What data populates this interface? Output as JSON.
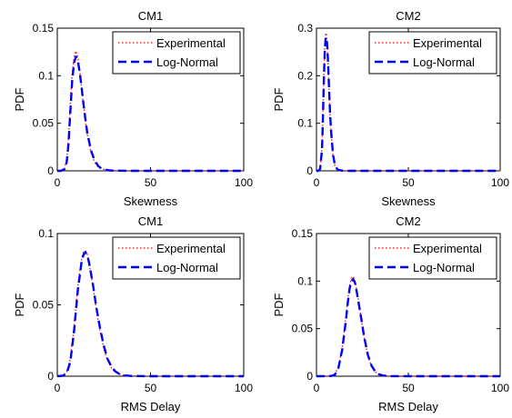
{
  "chart_data": [
    {
      "type": "line",
      "title": "CM1",
      "xlabel": "Skewness",
      "ylabel": "PDF",
      "xlim": [
        0,
        100
      ],
      "ylim": [
        0,
        0.15
      ],
      "xticks": [
        "0",
        "50",
        "100"
      ],
      "yticks": [
        "0",
        "0.05",
        "0.1",
        "0.15"
      ],
      "legend_position": "top-right",
      "grid": false,
      "series": [
        {
          "name": "Experimental",
          "color": "#ff0000",
          "style": "dotted",
          "x": [
            0,
            2,
            4,
            5,
            6,
            7,
            8,
            9,
            10,
            11,
            12,
            13,
            14,
            15,
            16,
            18,
            20,
            22,
            24,
            26,
            28,
            30,
            40,
            60,
            80,
            100
          ],
          "y": [
            0,
            0,
            0.003,
            0.012,
            0.035,
            0.07,
            0.103,
            0.12,
            0.126,
            0.12,
            0.106,
            0.088,
            0.07,
            0.053,
            0.039,
            0.02,
            0.009,
            0.004,
            0.002,
            0.001,
            0.0004,
            0.0002,
            0,
            0,
            0,
            0
          ]
        },
        {
          "name": "Log-Normal",
          "color": "#0000ff",
          "style": "dashed",
          "x": [
            0,
            2,
            4,
            5,
            6,
            7,
            8,
            9,
            10,
            11,
            12,
            13,
            14,
            15,
            16,
            18,
            20,
            22,
            24,
            26,
            28,
            30,
            40,
            60,
            80,
            100
          ],
          "y": [
            0,
            0,
            0.002,
            0.009,
            0.028,
            0.062,
            0.095,
            0.114,
            0.12,
            0.116,
            0.104,
            0.088,
            0.071,
            0.055,
            0.041,
            0.022,
            0.011,
            0.005,
            0.002,
            0.001,
            0.0005,
            0.0002,
            0,
            0,
            0,
            0
          ]
        }
      ]
    },
    {
      "type": "line",
      "title": "CM2",
      "xlabel": "Skewness",
      "ylabel": "PDF",
      "xlim": [
        0,
        100
      ],
      "ylim": [
        0,
        0.3
      ],
      "xticks": [
        "0",
        "50",
        "100"
      ],
      "yticks": [
        "0",
        "0.1",
        "0.2",
        "0.3"
      ],
      "legend_position": "top-right",
      "grid": false,
      "series": [
        {
          "name": "Experimental",
          "color": "#ff0000",
          "style": "dotted",
          "x": [
            0,
            1,
            2,
            3,
            3.5,
            4,
            4.5,
            5,
            5.5,
            6,
            6.5,
            7,
            7.5,
            8,
            9,
            10,
            11,
            12,
            14,
            16,
            20,
            40,
            60,
            80,
            100
          ],
          "y": [
            0,
            0,
            0.005,
            0.05,
            0.12,
            0.2,
            0.26,
            0.29,
            0.285,
            0.255,
            0.205,
            0.155,
            0.11,
            0.075,
            0.03,
            0.011,
            0.004,
            0.0015,
            0.0003,
            0,
            0,
            0,
            0,
            0,
            0
          ]
        },
        {
          "name": "Log-Normal",
          "color": "#0000ff",
          "style": "dashed",
          "x": [
            0,
            1,
            2,
            3,
            3.5,
            4,
            4.5,
            5,
            5.5,
            6,
            6.5,
            7,
            7.5,
            8,
            9,
            10,
            11,
            12,
            14,
            16,
            20,
            40,
            60,
            80,
            100
          ],
          "y": [
            0,
            0,
            0.004,
            0.045,
            0.11,
            0.19,
            0.25,
            0.28,
            0.28,
            0.255,
            0.21,
            0.16,
            0.115,
            0.08,
            0.034,
            0.013,
            0.005,
            0.002,
            0.0004,
            0,
            0,
            0,
            0,
            0,
            0
          ]
        }
      ]
    },
    {
      "type": "line",
      "title": "CM1",
      "xlabel": "RMS Delay",
      "ylabel": "PDF",
      "xlim": [
        0,
        100
      ],
      "ylim": [
        0,
        0.1
      ],
      "xticks": [
        "0",
        "50",
        "100"
      ],
      "yticks": [
        "0",
        "0.05",
        "0.1"
      ],
      "legend_position": "top-right",
      "grid": false,
      "series": [
        {
          "name": "Experimental",
          "color": "#ff0000",
          "style": "dotted",
          "x": [
            0,
            3,
            5,
            7,
            9,
            11,
            13,
            14,
            15,
            16,
            17,
            19,
            21,
            23,
            25,
            27,
            29,
            31,
            33,
            36,
            40,
            50,
            60,
            80,
            100
          ],
          "y": [
            0,
            0.0005,
            0.003,
            0.012,
            0.035,
            0.063,
            0.082,
            0.087,
            0.088,
            0.086,
            0.08,
            0.064,
            0.046,
            0.031,
            0.019,
            0.011,
            0.006,
            0.003,
            0.0015,
            0.0005,
            0.0001,
            0,
            0,
            0,
            0
          ]
        },
        {
          "name": "Log-Normal",
          "color": "#0000ff",
          "style": "dashed",
          "x": [
            0,
            3,
            5,
            7,
            9,
            11,
            13,
            14,
            15,
            16,
            17,
            19,
            21,
            23,
            25,
            27,
            29,
            31,
            33,
            36,
            40,
            50,
            60,
            80,
            100
          ],
          "y": [
            0,
            0.0003,
            0.002,
            0.01,
            0.032,
            0.06,
            0.08,
            0.085,
            0.087,
            0.085,
            0.08,
            0.065,
            0.048,
            0.033,
            0.021,
            0.012,
            0.007,
            0.0035,
            0.0018,
            0.0006,
            0.0001,
            0,
            0,
            0,
            0
          ]
        }
      ]
    },
    {
      "type": "line",
      "title": "CM2",
      "xlabel": "RMS Delay",
      "ylabel": "PDF",
      "xlim": [
        0,
        100
      ],
      "ylim": [
        0,
        0.15
      ],
      "xticks": [
        "0",
        "50",
        "100"
      ],
      "yticks": [
        "0",
        "0.05",
        "0.1",
        "0.15"
      ],
      "legend_position": "top-right",
      "grid": false,
      "series": [
        {
          "name": "Experimental",
          "color": "#ff0000",
          "style": "dotted",
          "x": [
            0,
            8,
            10,
            12,
            14,
            16,
            17,
            18,
            19,
            20,
            21,
            22,
            24,
            26,
            28,
            30,
            32,
            34,
            36,
            40,
            50,
            60,
            80,
            100
          ],
          "y": [
            0,
            0.0003,
            0.002,
            0.01,
            0.03,
            0.062,
            0.08,
            0.095,
            0.103,
            0.105,
            0.1,
            0.09,
            0.065,
            0.04,
            0.021,
            0.01,
            0.0045,
            0.0018,
            0.0007,
            0.0001,
            0,
            0,
            0,
            0
          ]
        },
        {
          "name": "Log-Normal",
          "color": "#0000ff",
          "style": "dashed",
          "x": [
            0,
            8,
            10,
            12,
            14,
            16,
            17,
            18,
            19,
            20,
            21,
            22,
            24,
            26,
            28,
            30,
            32,
            34,
            36,
            40,
            50,
            60,
            80,
            100
          ],
          "y": [
            0,
            0.0002,
            0.0015,
            0.009,
            0.028,
            0.058,
            0.076,
            0.092,
            0.1,
            0.102,
            0.098,
            0.088,
            0.065,
            0.041,
            0.022,
            0.011,
            0.005,
            0.002,
            0.0008,
            0.0001,
            0,
            0,
            0,
            0
          ]
        }
      ]
    }
  ]
}
